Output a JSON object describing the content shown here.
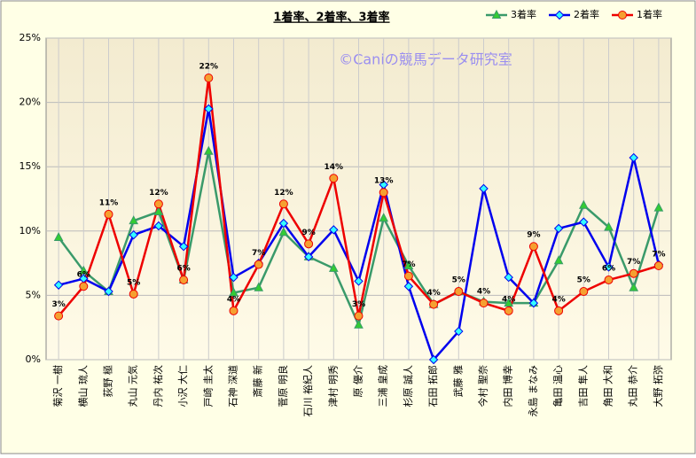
{
  "chart_data": {
    "type": "line",
    "title": "1着率、2着率、3着率",
    "watermark": "©Caniの競馬データ研究室",
    "categories": [
      "菊沢 一樹",
      "横山 琉人",
      "荻野 極",
      "丸山 元気",
      "丹内 祐次",
      "小沢 大仁",
      "戸崎 圭太",
      "石神 深道",
      "斎藤 新",
      "菅原 明良",
      "石川 裕紀人",
      "津村 明秀",
      "原 優介",
      "三浦 皇成",
      "杉原 誠人",
      "石田 拓郎",
      "武藤 雅",
      "今村 聖奈",
      "内田 博幸",
      "永島 まなみ",
      "亀田 温心",
      "吉田 隼人",
      "角田 大和",
      "丸田 恭介",
      "大野 拓弥"
    ],
    "series": [
      {
        "name": "3着率",
        "color": "#3a9a6a",
        "marker": "triangle",
        "marker_color": "#33cc33",
        "values": [
          9.5,
          6.9,
          5.3,
          10.8,
          11.5,
          6.2,
          16.2,
          5.2,
          5.6,
          9.9,
          8.0,
          7.1,
          2.7,
          11.0,
          7.3,
          4.3,
          5.3,
          4.5,
          4.4,
          4.4,
          7.7,
          12.0,
          10.3,
          5.6,
          11.8
        ]
      },
      {
        "name": "2着率",
        "color": "#0000ee",
        "marker": "diamond",
        "marker_color": "#33ffff",
        "values": [
          5.8,
          6.3,
          5.3,
          9.7,
          10.4,
          8.8,
          19.5,
          6.4,
          7.5,
          10.6,
          8.0,
          10.1,
          6.1,
          13.6,
          5.7,
          0.0,
          2.2,
          13.3,
          6.4,
          4.4,
          10.2,
          10.7,
          7.2,
          15.7,
          7.4
        ]
      },
      {
        "name": "1着率",
        "color": "#ee0000",
        "marker": "circle",
        "marker_color": "#f5a030",
        "values": [
          3.4,
          5.7,
          11.3,
          5.1,
          12.1,
          6.2,
          21.9,
          3.8,
          7.4,
          12.1,
          9.0,
          14.1,
          3.4,
          13.0,
          6.5,
          4.3,
          5.3,
          4.4,
          3.8,
          8.8,
          3.8,
          5.3,
          6.2,
          6.7,
          7.3
        ],
        "value_labels": [
          "3%",
          "6%",
          "11%",
          "5%",
          "12%",
          "6%",
          "22%",
          "4%",
          "7%",
          "12%",
          "9%",
          "14%",
          "3%",
          "13%",
          "7%",
          "4%",
          "5%",
          "4%",
          "4%",
          "9%",
          "4%",
          "5%",
          "6%",
          "7%",
          "7%"
        ]
      }
    ],
    "ylim": [
      0,
      25
    ],
    "yticks": [
      {
        "value": 0,
        "label": "0%"
      },
      {
        "value": 5,
        "label": "5%"
      },
      {
        "value": 10,
        "label": "10%"
      },
      {
        "value": 15,
        "label": "15%"
      },
      {
        "value": 20,
        "label": "20%"
      },
      {
        "value": 25,
        "label": "25%"
      }
    ],
    "grid": true,
    "legend": "top-right"
  }
}
